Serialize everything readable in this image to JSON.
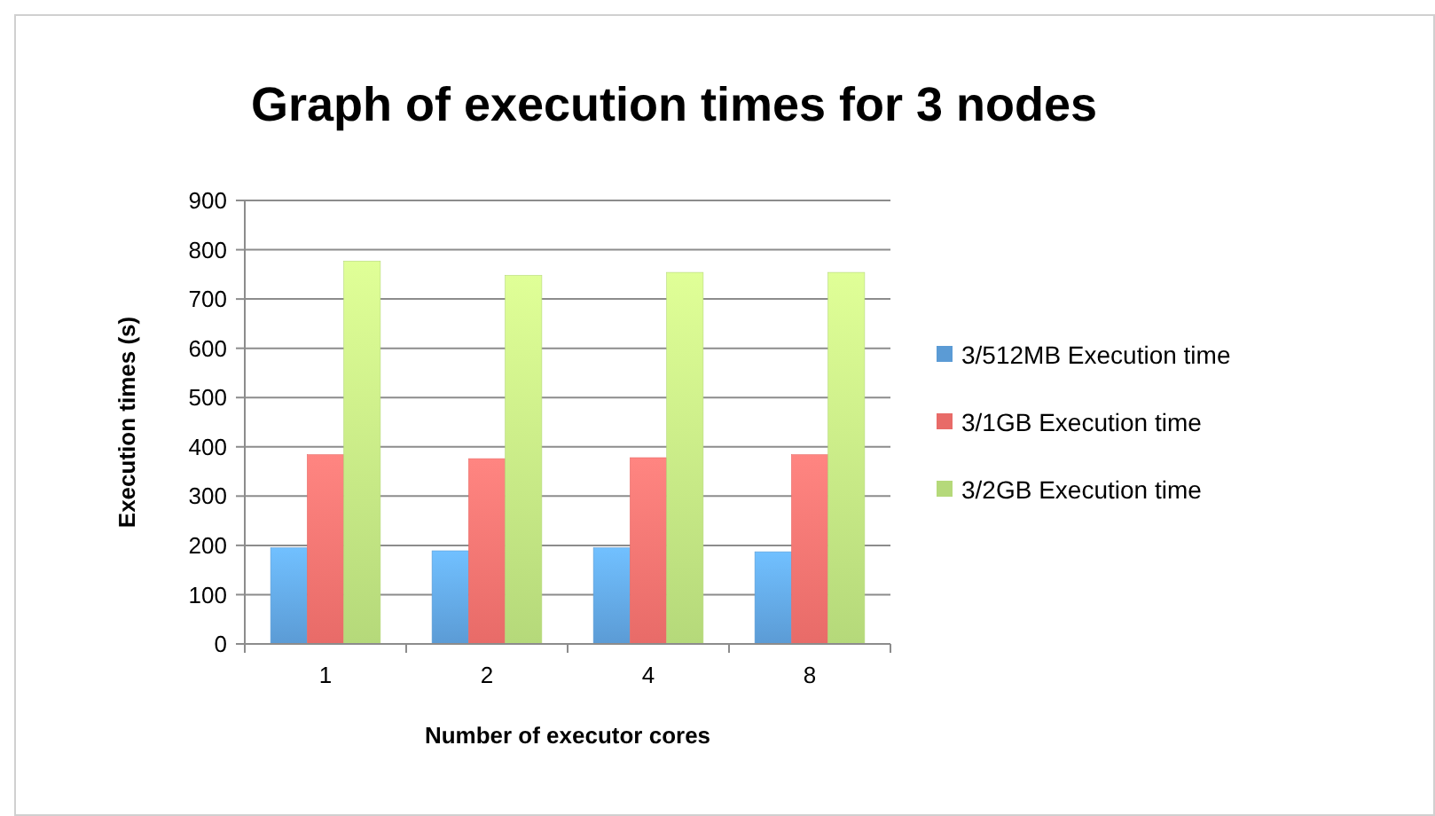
{
  "chart_data": {
    "type": "bar",
    "title": "Graph of execution times for 3 nodes",
    "xlabel": "Number of executor cores",
    "ylabel": "Execution times (s)",
    "categories": [
      "1",
      "2",
      "4",
      "8"
    ],
    "series": [
      {
        "name": "3/512MB Execution time",
        "color": "#5b9bd5",
        "values": [
          195,
          189,
          195,
          187
        ]
      },
      {
        "name": "3/1GB Execution time",
        "color": "#e86b68",
        "values": [
          384,
          376,
          378,
          384
        ]
      },
      {
        "name": "3/2GB Execution time",
        "color": "#b5d97a",
        "values": [
          777,
          748,
          754,
          754
        ]
      }
    ],
    "ylim": [
      0,
      900
    ],
    "yticks": [
      0,
      100,
      200,
      300,
      400,
      500,
      600,
      700,
      800,
      900
    ],
    "grid": "y",
    "legend": "right"
  }
}
